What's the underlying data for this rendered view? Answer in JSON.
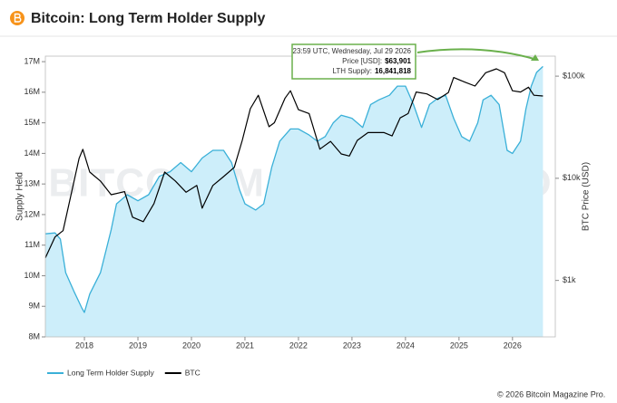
{
  "header": {
    "title": "Bitcoin: Long Term Holder Supply"
  },
  "chart_data": {
    "type": "line",
    "watermark": "BITCOIN MAGAZINE PRO",
    "ylabel": "Supply Held",
    "y2label": "BTC Price (USD)",
    "xlim": [
      2017.27,
      2026.8
    ],
    "xticks": [
      2018,
      2019,
      2020,
      2021,
      2022,
      2023,
      2024,
      2025,
      2026
    ],
    "ylim": [
      8000000,
      17180000
    ],
    "yticks": [
      {
        "value": 8000000,
        "label": "8M"
      },
      {
        "value": 9000000,
        "label": "9M"
      },
      {
        "value": 10000000,
        "label": "10M"
      },
      {
        "value": 11000000,
        "label": "11M"
      },
      {
        "value": 12000000,
        "label": "12M"
      },
      {
        "value": 13000000,
        "label": "13M"
      },
      {
        "value": 14000000,
        "label": "14M"
      },
      {
        "value": 15000000,
        "label": "15M"
      },
      {
        "value": 16000000,
        "label": "16M"
      },
      {
        "value": 17000000,
        "label": "17M"
      }
    ],
    "y2lim": [
      280,
      157000
    ],
    "y2scale": "log",
    "y2ticks": [
      {
        "value": 1000,
        "label": "$1k"
      },
      {
        "value": 10000,
        "label": "$10k"
      },
      {
        "value": 100000,
        "label": "$100k"
      }
    ],
    "grid": false,
    "series": [
      {
        "name": "Long Term Holder Supply",
        "color": "#3ab0d8",
        "fill": "#cdeefa",
        "x": [
          2017.27,
          2017.45,
          2017.55,
          2017.65,
          2017.8,
          2017.95,
          2018.0,
          2018.1,
          2018.3,
          2018.5,
          2018.6,
          2018.8,
          2019.0,
          2019.2,
          2019.4,
          2019.6,
          2019.8,
          2020.0,
          2020.2,
          2020.4,
          2020.6,
          2020.75,
          2020.9,
          2021.0,
          2021.2,
          2021.35,
          2021.5,
          2021.65,
          2021.85,
          2022.0,
          2022.2,
          2022.35,
          2022.5,
          2022.65,
          2022.8,
          2023.0,
          2023.2,
          2023.35,
          2023.5,
          2023.7,
          2023.85,
          2024.0,
          2024.15,
          2024.3,
          2024.45,
          2024.6,
          2024.75,
          2024.9,
          2025.05,
          2025.2,
          2025.35,
          2025.45,
          2025.6,
          2025.75,
          2025.9,
          2026.0,
          2026.15,
          2026.25,
          2026.35,
          2026.45,
          2026.57
        ],
        "values": [
          11370000,
          11400000,
          11200000,
          10100000,
          9500000,
          8950000,
          8800000,
          9400000,
          10100000,
          11500000,
          12350000,
          12650000,
          12450000,
          12650000,
          13250000,
          13400000,
          13700000,
          13400000,
          13850000,
          14100000,
          14100000,
          13700000,
          12800000,
          12350000,
          12150000,
          12350000,
          13550000,
          14400000,
          14800000,
          14800000,
          14600000,
          14400000,
          14550000,
          15000000,
          15250000,
          15150000,
          14850000,
          15600000,
          15750000,
          15900000,
          16200000,
          16200000,
          15600000,
          14850000,
          15600000,
          15800000,
          15900000,
          15150000,
          14550000,
          14400000,
          15000000,
          15750000,
          15900000,
          15600000,
          14100000,
          14000000,
          14400000,
          15450000,
          16200000,
          16650000,
          16841818
        ]
      },
      {
        "name": "BTC",
        "color": "#000000",
        "axis": "y2",
        "x": [
          2017.27,
          2017.45,
          2017.6,
          2017.75,
          2017.9,
          2017.97,
          2018.1,
          2018.3,
          2018.5,
          2018.75,
          2018.9,
          2019.1,
          2019.3,
          2019.5,
          2019.7,
          2019.9,
          2020.1,
          2020.2,
          2020.4,
          2020.6,
          2020.8,
          2020.95,
          2021.1,
          2021.25,
          2021.45,
          2021.55,
          2021.75,
          2021.85,
          2022.0,
          2022.2,
          2022.4,
          2022.6,
          2022.8,
          2022.95,
          2023.1,
          2023.3,
          2023.6,
          2023.75,
          2023.9,
          2024.05,
          2024.2,
          2024.4,
          2024.6,
          2024.8,
          2024.9,
          2025.1,
          2025.3,
          2025.5,
          2025.7,
          2025.85,
          2026.0,
          2026.15,
          2026.3,
          2026.4,
          2026.57
        ],
        "values": [
          1660,
          2660,
          3070,
          6900,
          15700,
          19200,
          11500,
          9400,
          6900,
          7400,
          4160,
          3760,
          5650,
          11500,
          9400,
          7300,
          8500,
          5100,
          8500,
          10400,
          12800,
          23500,
          48000,
          65000,
          32000,
          35000,
          61000,
          72000,
          47000,
          43000,
          19300,
          23000,
          17300,
          16500,
          23500,
          28000,
          28000,
          26000,
          39000,
          43000,
          70000,
          67000,
          59000,
          69000,
          97000,
          88000,
          80000,
          108000,
          118000,
          108000,
          72000,
          70000,
          78000,
          65000,
          63901
        ]
      }
    ],
    "tooltip": {
      "time": "23:59 UTC, Wednesday, Jul 29 2026",
      "price_label": "Price [USD]:",
      "price": "$63,901",
      "supply_label": "LTH Supply:",
      "supply": "16,841,818"
    },
    "legend": "bottom-left"
  },
  "footer": {
    "copyright": "© 2026 Bitcoin Magazine Pro."
  }
}
